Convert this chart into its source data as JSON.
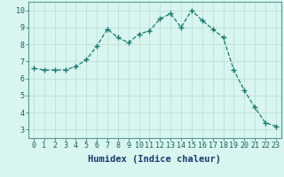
{
  "x": [
    0,
    1,
    2,
    3,
    4,
    5,
    6,
    7,
    8,
    9,
    10,
    11,
    12,
    13,
    14,
    15,
    16,
    17,
    18,
    19,
    20,
    21,
    22,
    23
  ],
  "y": [
    6.6,
    6.5,
    6.5,
    6.5,
    6.7,
    7.1,
    7.9,
    8.9,
    8.4,
    8.1,
    8.6,
    8.8,
    9.5,
    9.8,
    9.0,
    10.0,
    9.4,
    8.9,
    8.4,
    6.5,
    5.3,
    4.3,
    3.4,
    3.2
  ],
  "line_color": "#1a7a6e",
  "marker": "+",
  "marker_size": 4,
  "bg_color": "#d8f5f0",
  "grid_color": "#b8dbd6",
  "xlabel": "Humidex (Indice chaleur)",
  "xlim": [
    -0.5,
    23.5
  ],
  "ylim": [
    2.5,
    10.5
  ],
  "xticks": [
    0,
    1,
    2,
    3,
    4,
    5,
    6,
    7,
    8,
    9,
    10,
    11,
    12,
    13,
    14,
    15,
    16,
    17,
    18,
    19,
    20,
    21,
    22,
    23
  ],
  "yticks": [
    3,
    4,
    5,
    6,
    7,
    8,
    9,
    10
  ],
  "tick_fontsize": 6,
  "label_fontsize": 7.5
}
